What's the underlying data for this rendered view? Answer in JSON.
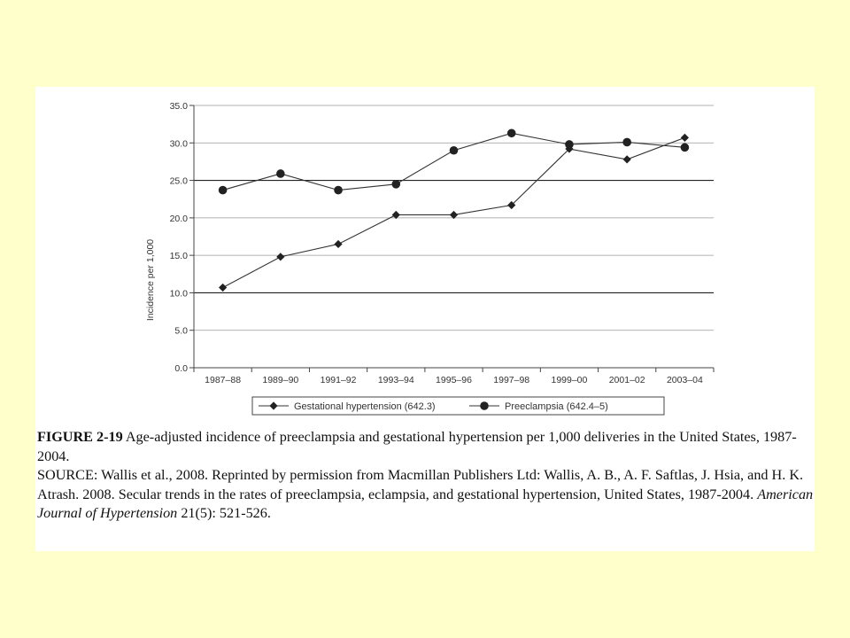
{
  "chart_data": {
    "type": "line",
    "categories": [
      "1987–88",
      "1989–90",
      "1991–92",
      "1993–94",
      "1995–96",
      "1997–98",
      "1999–00",
      "2001–02",
      "2003–04"
    ],
    "series": [
      {
        "name": "Gestational hypertension (642.3)",
        "marker": "diamond",
        "values": [
          10.7,
          14.8,
          16.5,
          20.4,
          20.4,
          21.7,
          29.2,
          27.8,
          30.7
        ]
      },
      {
        "name": "Preeclampsia (642.4–5)",
        "marker": "circle",
        "values": [
          23.7,
          25.9,
          23.7,
          24.5,
          29.0,
          31.3,
          29.8,
          30.1,
          29.4
        ]
      }
    ],
    "ylabel": "Incidence per 1,000",
    "xlabel": "",
    "ylim": [
      0,
      35
    ],
    "yticks": [
      "0.0",
      "5.0",
      "10.0",
      "15.0",
      "20.0",
      "25.0",
      "30.0",
      "35.0"
    ],
    "grid": "horizontal",
    "legend": "bottom",
    "colors": {
      "line": "#333333",
      "grid": "#999999",
      "grid_major": "#222222"
    }
  },
  "caption": {
    "figure_label": "FIGURE 2-19",
    "figure_text": " Age-adjusted incidence of preeclampsia and gestational hypertension per 1,000 deliveries in the United States, 1987-2004.",
    "source_text": "SOURCE: Wallis et al., 2008. Reprinted by permission from Macmillan Publishers Ltd: Wallis, A. B., A. F. Saftlas, J. Hsia, and H. K. Atrash. 2008. Secular trends in the rates of preeclampsia, eclampsia, and gestational hypertension, United States, 1987-2004. ",
    "journal": "American Journal of Hypertension",
    "citation_end": " 21(5): 521-526."
  },
  "colors": {
    "slide_background": "#ffffcc",
    "panel_background": "#ffffff"
  }
}
